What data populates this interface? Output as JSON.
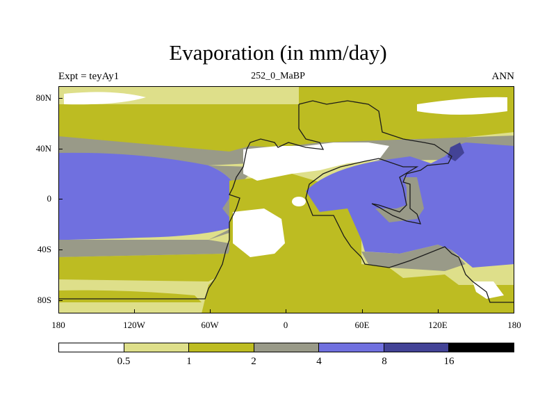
{
  "title": "Evaporation (in mm/day)",
  "left_label": "Expt = teyAy1",
  "center_label": "252_0_MaBP",
  "right_label": "ANN",
  "y_ticks": [
    "80N",
    "40N",
    "0",
    "40S",
    "80S"
  ],
  "x_ticks": [
    "180",
    "120W",
    "60W",
    "0",
    "60E",
    "120E",
    "180"
  ],
  "colorbar": {
    "levels": [
      "0.5",
      "1",
      "2",
      "4",
      "8",
      "16"
    ],
    "colors": [
      "#ffffff",
      "#dedf8a",
      "#bdbc22",
      "#999a88",
      "#7070df",
      "#434396",
      "#000000"
    ]
  },
  "colors": {
    "lt_yellow": "#dedf8a",
    "olive": "#bdbc22",
    "gray": "#999a88",
    "blue": "#7070df",
    "dark_blue": "#434396",
    "white": "#ffffff",
    "coast": "#1a1a1a"
  }
}
